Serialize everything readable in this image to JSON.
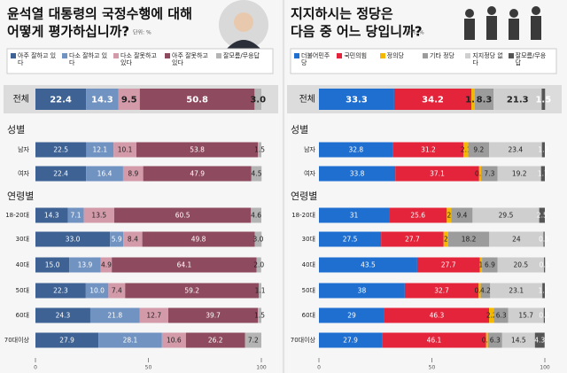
{
  "chart_data": [
    {
      "type": "stacked-bar-horizontal",
      "title": [
        "윤석열 대통령의 국정수행에 대해",
        "어떻게 평가하십니까?"
      ],
      "unit": "단위: %",
      "group_labels": [
        "성별",
        "연령별"
      ],
      "categories": [
        "전체",
        "남자",
        "여자",
        "18-20대",
        "30대",
        "40대",
        "50대",
        "60대",
        "70대이상"
      ],
      "series": [
        {
          "name": "아주 잘하고 있다",
          "color": "#3d6293",
          "values": [
            22.4,
            22.5,
            22.4,
            14.3,
            33.0,
            15.0,
            22.3,
            24.3,
            27.9
          ],
          "value_labels": [
            "22.4",
            "22.5",
            "22.4",
            "14.3",
            "33.0",
            "15.0",
            "22.3",
            "24.3",
            "27.9"
          ]
        },
        {
          "name": "다소 잘하고 있다",
          "color": "#7193c2",
          "values": [
            14.3,
            12.1,
            16.4,
            7.1,
            5.9,
            13.9,
            10.0,
            21.8,
            28.1
          ],
          "value_labels": [
            "14.3",
            "12.1",
            "16.4",
            "7.1",
            "5.9",
            "13.9",
            "10.0",
            "21.8",
            "28.1"
          ]
        },
        {
          "name": "다소 잘못하고 있다",
          "color": "#d39aaa",
          "values": [
            9.5,
            10.1,
            8.9,
            13.5,
            8.4,
            4.9,
            7.4,
            12.7,
            10.6
          ],
          "value_labels": [
            "9.5",
            "10.1",
            "8.9",
            "13.5",
            "8.4",
            "4.9",
            "7.4",
            "12.7",
            "10.6"
          ]
        },
        {
          "name": "아주 잘못하고 있다",
          "color": "#8e4b5f",
          "values": [
            50.8,
            53.8,
            47.9,
            60.5,
            49.8,
            64.1,
            59.2,
            39.7,
            26.2
          ],
          "value_labels": [
            "50.8",
            "53.8",
            "47.9",
            "60.5",
            "49.8",
            "64.1",
            "59.2",
            "39.7",
            "26.2"
          ]
        },
        {
          "name": "잘모름/무응답",
          "color": "#b4b4b4",
          "values": [
            3.0,
            1.5,
            4.5,
            4.6,
            3.0,
            2.0,
            1.1,
            1.5,
            7.2
          ],
          "value_labels": [
            "3.0",
            "1.5",
            "4.5",
            "4.6",
            "3.0",
            "2.0",
            "1.1",
            "1.5",
            "7.2"
          ]
        }
      ],
      "xlim": [
        0,
        100
      ],
      "xticks": [
        0,
        50,
        100
      ]
    },
    {
      "type": "stacked-bar-horizontal",
      "title": [
        "지지하시는 정당은",
        "다음 중 어느 당입니까?"
      ],
      "unit": "단위: %",
      "group_labels": [
        "성별",
        "연령별"
      ],
      "categories": [
        "전체",
        "남자",
        "여자",
        "18-20대",
        "30대",
        "40대",
        "50대",
        "60대",
        "70대이상"
      ],
      "series": [
        {
          "name": "더불어민주당",
          "color": "#1f6fd0",
          "values": [
            33.3,
            32.8,
            33.8,
            31,
            27.5,
            43.5,
            38,
            29,
            27.9
          ]
        },
        {
          "name": "국민의힘",
          "color": "#e3243b",
          "values": [
            34.2,
            31.2,
            37.1,
            25.6,
            27.7,
            27.7,
            32.7,
            46.3,
            46.1
          ]
        },
        {
          "name": "정의당",
          "color": "#f5b800",
          "values": [
            1.5,
            2.1,
            0.9,
            2,
            2,
            1,
            0.9,
            2.2,
            0.8
          ]
        },
        {
          "name": "기타 정당",
          "color": "#9c9c9c",
          "values": [
            8.3,
            9.2,
            7.3,
            9.4,
            18.2,
            6.9,
            4.2,
            6.3,
            6.3
          ]
        },
        {
          "name": "지지정당 없다",
          "color": "#cfcfcf",
          "values": [
            21.3,
            23.4,
            19.2,
            29.5,
            24,
            20.5,
            23.1,
            15.7,
            14.5
          ]
        },
        {
          "name": "잘모름/무응답",
          "color": "#555555",
          "values": [
            1.5,
            1.3,
            1.7,
            2.5,
            0.5,
            0.5,
            1.1,
            0.5,
            4.3
          ]
        }
      ],
      "xlim": [
        0,
        100
      ],
      "xticks": [
        0,
        50,
        100
      ]
    }
  ]
}
